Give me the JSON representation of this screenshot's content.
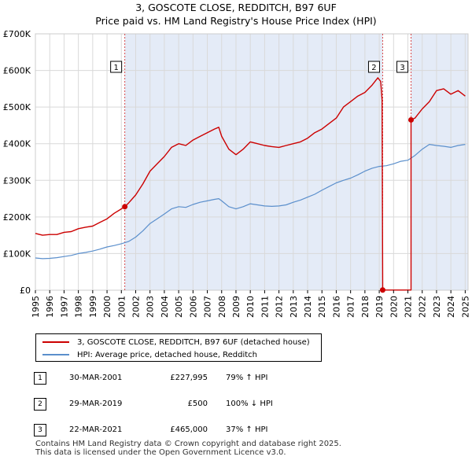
{
  "title_line1": "3, GOSCOTE CLOSE, REDDITCH, B97 6UF",
  "title_line2": "Price paid vs. HM Land Registry's House Price Index (HPI)",
  "chart_data": {
    "type": "line",
    "title": "3, GOSCOTE CLOSE, REDDITCH, B97 6UF — Price paid vs. HM Land Registry's House Price Index (HPI)",
    "xlim": [
      1995,
      2025.2
    ],
    "ylim": [
      0,
      700000
    ],
    "x_ticks": [
      1995,
      1996,
      1997,
      1998,
      1999,
      2000,
      2001,
      2002,
      2003,
      2004,
      2005,
      2006,
      2007,
      2008,
      2009,
      2010,
      2011,
      2012,
      2013,
      2014,
      2015,
      2016,
      2017,
      2018,
      2019,
      2020,
      2021,
      2022,
      2023,
      2024,
      2025
    ],
    "y_ticks": [
      0,
      100000,
      200000,
      300000,
      400000,
      500000,
      600000,
      700000
    ],
    "y_tick_labels": [
      "£0",
      "£100K",
      "£200K",
      "£300K",
      "£400K",
      "£500K",
      "£600K",
      "£700K"
    ],
    "colors": {
      "property": "#cc0000",
      "hpi": "#5b8fcc",
      "shade": "#dde6f5",
      "marker_line": "#cc0000"
    },
    "series": [
      {
        "name": "3, GOSCOTE CLOSE, REDDITCH, B97 6UF (detached house)",
        "key": "property",
        "x": [
          1995.0,
          1995.5,
          1996.0,
          1996.5,
          1997.0,
          1997.5,
          1998.0,
          1998.5,
          1999.0,
          1999.5,
          2000.0,
          2000.5,
          2001.0,
          2001.24,
          2001.5,
          2002.0,
          2002.5,
          2003.0,
          2003.5,
          2004.0,
          2004.5,
          2005.0,
          2005.5,
          2006.0,
          2006.5,
          2007.0,
          2007.5,
          2007.8,
          2008.0,
          2008.5,
          2009.0,
          2009.5,
          2010.0,
          2010.5,
          2011.0,
          2011.5,
          2012.0,
          2012.5,
          2013.0,
          2013.5,
          2014.0,
          2014.5,
          2015.0,
          2015.5,
          2016.0,
          2016.5,
          2017.0,
          2017.5,
          2018.0,
          2018.5,
          2018.9,
          2019.1,
          2019.2,
          2019.24,
          2019.24,
          2021.22,
          2021.22,
          2021.5,
          2022.0,
          2022.5,
          2023.0,
          2023.5,
          2024.0,
          2024.5,
          2025.0
        ],
        "values": [
          155000,
          150000,
          152000,
          152000,
          158000,
          160000,
          168000,
          172000,
          175000,
          185000,
          195000,
          210000,
          222000,
          227995,
          238000,
          260000,
          290000,
          325000,
          345000,
          365000,
          390000,
          400000,
          395000,
          410000,
          420000,
          430000,
          440000,
          445000,
          420000,
          385000,
          370000,
          385000,
          405000,
          400000,
          395000,
          392000,
          390000,
          395000,
          400000,
          405000,
          415000,
          430000,
          440000,
          455000,
          470000,
          500000,
          515000,
          530000,
          540000,
          560000,
          580000,
          570000,
          520000,
          500,
          500,
          500,
          465000,
          470000,
          495000,
          515000,
          545000,
          550000,
          535000,
          545000,
          530000
        ]
      },
      {
        "name": "HPI: Average price, detached house, Redditch",
        "key": "hpi",
        "x": [
          1995.0,
          1995.5,
          1996.0,
          1996.5,
          1997.0,
          1997.5,
          1998.0,
          1998.5,
          1999.0,
          1999.5,
          2000.0,
          2000.5,
          2001.0,
          2001.5,
          2002.0,
          2002.5,
          2003.0,
          2003.5,
          2004.0,
          2004.5,
          2005.0,
          2005.5,
          2006.0,
          2006.5,
          2007.0,
          2007.5,
          2007.8,
          2008.0,
          2008.5,
          2009.0,
          2009.5,
          2010.0,
          2010.5,
          2011.0,
          2011.5,
          2012.0,
          2012.5,
          2013.0,
          2013.5,
          2014.0,
          2014.5,
          2015.0,
          2015.5,
          2016.0,
          2016.5,
          2017.0,
          2017.5,
          2018.0,
          2018.5,
          2019.0,
          2019.5,
          2020.0,
          2020.5,
          2021.0,
          2021.5,
          2022.0,
          2022.5,
          2023.0,
          2023.5,
          2024.0,
          2024.5,
          2025.0
        ],
        "values": [
          88000,
          86000,
          87000,
          89000,
          92000,
          95000,
          100000,
          103000,
          107000,
          112000,
          118000,
          122000,
          127000,
          133000,
          145000,
          162000,
          182000,
          195000,
          208000,
          222000,
          228000,
          226000,
          234000,
          240000,
          244000,
          248000,
          250000,
          244000,
          228000,
          222000,
          228000,
          236000,
          233000,
          230000,
          229000,
          230000,
          233000,
          240000,
          246000,
          254000,
          262000,
          273000,
          283000,
          293000,
          300000,
          306000,
          315000,
          325000,
          333000,
          338000,
          340000,
          345000,
          352000,
          355000,
          368000,
          385000,
          398000,
          395000,
          393000,
          390000,
          395000,
          398000
        ]
      }
    ],
    "sale_markers": [
      {
        "label": "1",
        "x": 2001.24,
        "y": 227995
      },
      {
        "label": "2",
        "x": 2019.24,
        "y": 500
      },
      {
        "label": "3",
        "x": 2021.22,
        "y": 465000
      }
    ],
    "shaded_ranges": [
      [
        2001.24,
        2019.24
      ],
      [
        2021.22,
        2025.2
      ]
    ]
  },
  "legend": {
    "property_label": "3, GOSCOTE CLOSE, REDDITCH, B97 6UF (detached house)",
    "hpi_label": "HPI: Average price, detached house, Redditch"
  },
  "sales": [
    {
      "num": "1",
      "date": "30-MAR-2001",
      "price": "£227,995",
      "hpi": "79% ↑ HPI"
    },
    {
      "num": "2",
      "date": "29-MAR-2019",
      "price": "£500",
      "hpi": "100% ↓ HPI"
    },
    {
      "num": "3",
      "date": "22-MAR-2021",
      "price": "£465,000",
      "hpi": "37% ↑ HPI"
    }
  ],
  "footer": {
    "line1": "Contains HM Land Registry data © Crown copyright and database right 2025.",
    "line2": "This data is licensed under the Open Government Licence v3.0."
  }
}
